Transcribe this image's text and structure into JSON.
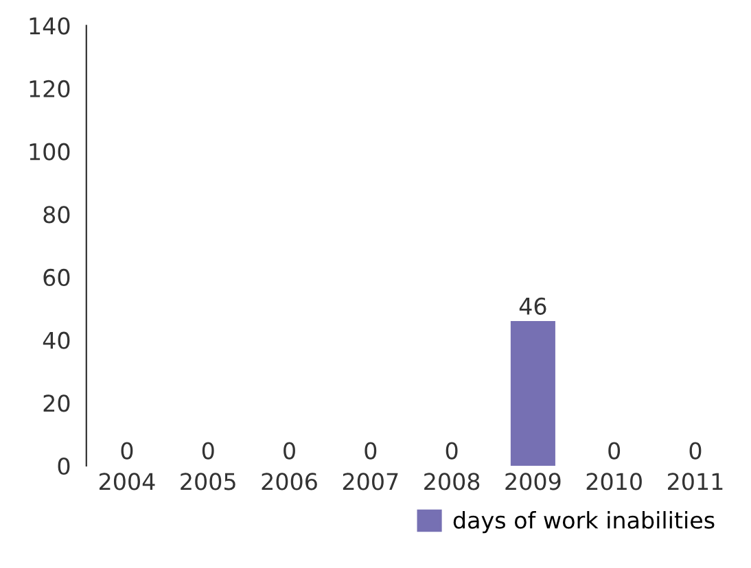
{
  "chart_data": {
    "type": "bar",
    "categories": [
      "2004",
      "2005",
      "2006",
      "2007",
      "2008",
      "2009",
      "2010",
      "2011"
    ],
    "series": [
      {
        "name": "days of work inabilities",
        "color": "#7670b3",
        "values": [
          0,
          0,
          0,
          0,
          0,
          46,
          0,
          0
        ]
      }
    ],
    "ylim": [
      0,
      140
    ],
    "yticks": [
      0,
      20,
      40,
      60,
      80,
      100,
      120,
      140
    ],
    "data_labels": true,
    "grid": false,
    "legend": "bottom right"
  }
}
